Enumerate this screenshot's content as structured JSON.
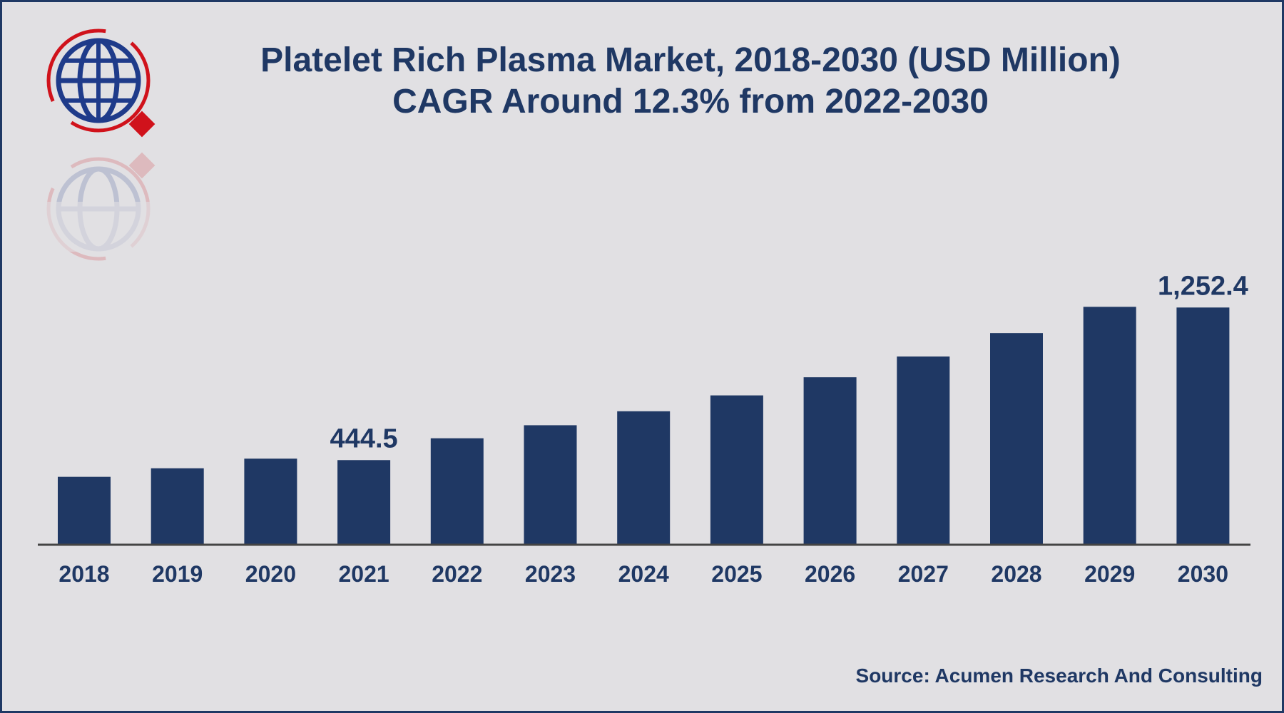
{
  "colors": {
    "background": "#e1e0e3",
    "bar": "#1f3864",
    "text": "#1f3864",
    "axis": "#444444",
    "logo_red": "#d0121b",
    "logo_blue": "#1f3b8a"
  },
  "logo": {
    "icon": "globe-magnifier-logo-icon"
  },
  "chart_data": {
    "type": "bar",
    "title": "Platelet Rich Plasma Market, 2018-2030 (USD Million)",
    "subtitle": "CAGR Around 12.3% from 2022-2030",
    "categories": [
      "2018",
      "2019",
      "2020",
      "2021",
      "2022",
      "2023",
      "2024",
      "2025",
      "2026",
      "2027",
      "2028",
      "2029",
      "2030"
    ],
    "values": [
      356.0,
      401.0,
      452.0,
      444.5,
      560.0,
      629.0,
      703.0,
      787.0,
      883.0,
      993.0,
      1117.0,
      1256.0,
      1252.4
    ],
    "data_labels": [
      {
        "index": 3,
        "text": "444.5"
      },
      {
        "index": 12,
        "text": "1,252.4"
      }
    ],
    "xlabel": "",
    "ylabel": "",
    "ylim": [
      0,
      1400
    ],
    "grid": false,
    "legend": "none"
  },
  "source": "Source: Acumen Research And Consulting"
}
